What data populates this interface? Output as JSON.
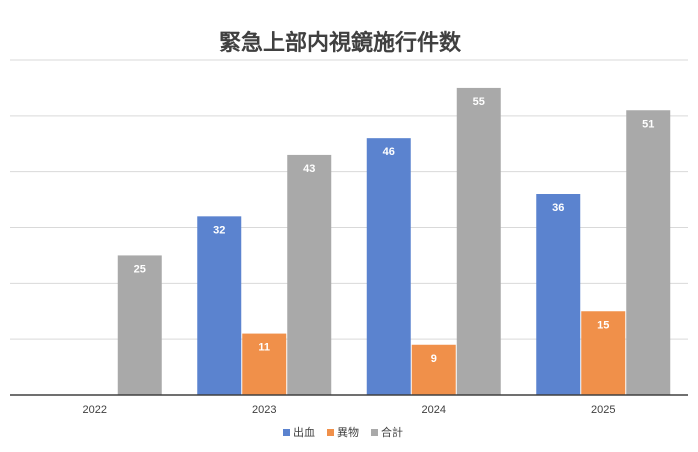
{
  "chart_data": {
    "type": "bar",
    "title": "緊急上部内視鏡施行件数",
    "categories": [
      "2022",
      "2023",
      "2024",
      "2025"
    ],
    "series": [
      {
        "name": "出血",
        "color": "#5b83cf",
        "values": [
          null,
          32,
          46,
          36
        ]
      },
      {
        "name": "異物",
        "color": "#f0904a",
        "values": [
          null,
          11,
          9,
          15
        ]
      },
      {
        "name": "合計",
        "color": "#a9a9a9",
        "values": [
          25,
          43,
          55,
          51
        ]
      }
    ],
    "ylim": [
      0,
      60
    ],
    "grid": true,
    "legend": "bottom-center"
  }
}
